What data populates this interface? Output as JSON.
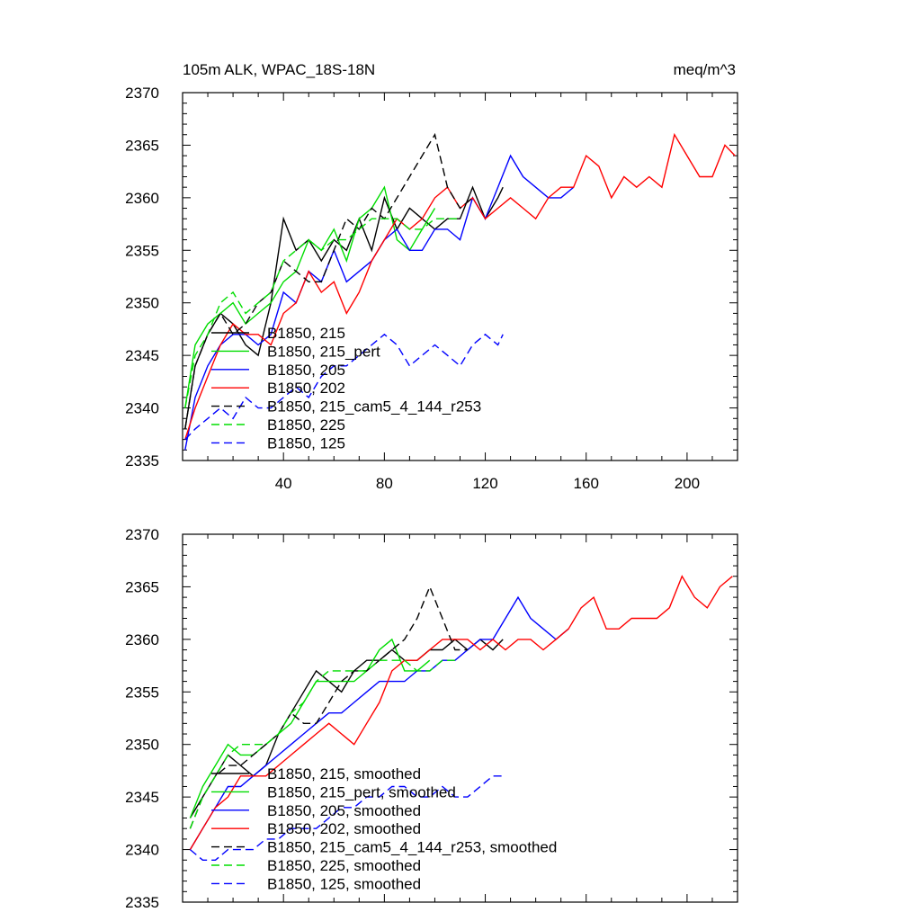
{
  "chart_data": [
    {
      "type": "line",
      "title": "105m ALK, WPAC_18S-18N",
      "units": "meq/m^3",
      "xlabel": "",
      "ylabel": "",
      "xlim": [
        0,
        220
      ],
      "ylim": [
        2335,
        2370
      ],
      "xticks": [
        40,
        80,
        120,
        160,
        200
      ],
      "yticks": [
        2335,
        2340,
        2345,
        2350,
        2355,
        2360,
        2365,
        2370
      ],
      "legend_position": "lower-left",
      "series": [
        {
          "name": "B1850, 215",
          "color": "#000000",
          "dash": "solid",
          "x": [
            1,
            5,
            10,
            15,
            20,
            25,
            30,
            35,
            40,
            45,
            50,
            55,
            60,
            65,
            70,
            75,
            80,
            85,
            90,
            95,
            100,
            105,
            110,
            115,
            120,
            125,
            127
          ],
          "y": [
            2338,
            2344,
            2347,
            2349,
            2348,
            2346,
            2345,
            2350,
            2358,
            2355,
            2356,
            2354,
            2356,
            2355,
            2358,
            2355,
            2360,
            2357,
            2359,
            2358,
            2357,
            2358,
            2358,
            2361,
            2358,
            2360,
            2361
          ]
        },
        {
          "name": "B1850, 215_pert",
          "color": "#00dd00",
          "dash": "solid",
          "x": [
            1,
            5,
            10,
            15,
            20,
            25,
            30,
            35,
            40,
            45,
            50,
            55,
            60,
            65,
            70,
            75,
            80,
            85,
            90,
            95,
            100
          ],
          "y": [
            2340,
            2346,
            2348,
            2349,
            2350,
            2348,
            2349,
            2350,
            2352,
            2353,
            2356,
            2355,
            2357,
            2354,
            2358,
            2359,
            2361,
            2356,
            2355,
            2357,
            2359
          ]
        },
        {
          "name": "B1850, 205",
          "color": "#0000ff",
          "dash": "solid",
          "x": [
            1,
            5,
            10,
            15,
            20,
            25,
            30,
            35,
            40,
            45,
            50,
            55,
            60,
            65,
            70,
            75,
            80,
            85,
            90,
            95,
            100,
            105,
            110,
            115,
            120,
            125,
            130,
            135,
            140,
            145,
            150,
            155
          ],
          "y": [
            2336,
            2341,
            2344,
            2346,
            2347,
            2347,
            2346,
            2347,
            2351,
            2350,
            2353,
            2352,
            2355,
            2352,
            2353,
            2354,
            2356,
            2357,
            2355,
            2355,
            2357,
            2357,
            2356,
            2360,
            2358,
            2361,
            2364,
            2362,
            2361,
            2360,
            2360,
            2361
          ]
        },
        {
          "name": "B1850, 202",
          "color": "#ff0000",
          "dash": "solid",
          "x": [
            1,
            5,
            10,
            15,
            20,
            25,
            30,
            35,
            40,
            45,
            50,
            55,
            60,
            65,
            70,
            75,
            80,
            85,
            90,
            95,
            100,
            105,
            110,
            115,
            120,
            125,
            130,
            135,
            140,
            145,
            150,
            155,
            160,
            165,
            170,
            175,
            180,
            185,
            190,
            195,
            200,
            205,
            210,
            215,
            219
          ],
          "y": [
            2337,
            2340,
            2343,
            2346,
            2348,
            2347,
            2347,
            2346,
            2349,
            2350,
            2353,
            2351,
            2352,
            2349,
            2351,
            2354,
            2356,
            2358,
            2357,
            2358,
            2360,
            2361,
            2359,
            2360,
            2358,
            2359,
            2360,
            2359,
            2358,
            2360,
            2361,
            2361,
            2364,
            2363,
            2360,
            2362,
            2361,
            2362,
            2361,
            2366,
            2364,
            2362,
            2362,
            2365,
            2364
          ]
        },
        {
          "name": "B1850, 215_cam5_4_144_r253",
          "color": "#000000",
          "dash": "dashed",
          "x": [
            1,
            5,
            10,
            15,
            20,
            25,
            30,
            35,
            40,
            45,
            50,
            55,
            60,
            65,
            70,
            75,
            80,
            85,
            90,
            95,
            100,
            105,
            110,
            115
          ],
          "y": [
            2338,
            2344,
            2347,
            2349,
            2347,
            2348,
            2350,
            2351,
            2354,
            2353,
            2352,
            2352,
            2355,
            2358,
            2357,
            2359,
            2358,
            2360,
            2362,
            2364,
            2366,
            2361,
            2359,
            2360
          ]
        },
        {
          "name": "B1850, 225",
          "color": "#00dd00",
          "dash": "dashed",
          "x": [
            1,
            5,
            10,
            15,
            20,
            25,
            30,
            35,
            40,
            45,
            50,
            55,
            60,
            65,
            70,
            75,
            80,
            85,
            90,
            95,
            100,
            105,
            110
          ],
          "y": [
            2340,
            2345,
            2347,
            2350,
            2351,
            2349,
            2350,
            2351,
            2354,
            2355,
            2356,
            2355,
            2356,
            2356,
            2357,
            2358,
            2358,
            2358,
            2357,
            2357,
            2358,
            2358,
            2358
          ]
        },
        {
          "name": "B1850, 125",
          "color": "#0000ff",
          "dash": "dashed",
          "x": [
            1,
            5,
            10,
            15,
            20,
            25,
            30,
            35,
            40,
            45,
            50,
            55,
            60,
            65,
            70,
            75,
            80,
            85,
            90,
            95,
            100,
            105,
            110,
            115,
            120,
            125,
            127
          ],
          "y": [
            2337,
            2338,
            2339,
            2340,
            2339,
            2341,
            2340,
            2340,
            2341,
            2342,
            2341,
            2343,
            2344,
            2344,
            2345,
            2346,
            2347,
            2346,
            2344,
            2345,
            2346,
            2345,
            2344,
            2346,
            2347,
            2346,
            2347
          ]
        }
      ]
    },
    {
      "type": "line",
      "title": "",
      "xlabel": "",
      "ylabel": "",
      "xlim": [
        0,
        220
      ],
      "ylim": [
        2335,
        2370
      ],
      "yticks": [
        2335,
        2340,
        2345,
        2350,
        2355,
        2360,
        2365,
        2370
      ],
      "legend_position": "lower-left",
      "series": [
        {
          "name": "B1850, 215, smoothed",
          "color": "#000000",
          "dash": "solid",
          "x": [
            3,
            8,
            13,
            18,
            23,
            28,
            33,
            38,
            43,
            48,
            53,
            58,
            63,
            68,
            73,
            78,
            83,
            88,
            93,
            98,
            103,
            108,
            113,
            118,
            123,
            127
          ],
          "y": [
            2343,
            2345,
            2347,
            2349,
            2348,
            2347,
            2348,
            2351,
            2353,
            2355,
            2357,
            2356,
            2355,
            2357,
            2358,
            2358,
            2359,
            2358,
            2358,
            2359,
            2359,
            2360,
            2359,
            2360,
            2359,
            2360
          ]
        },
        {
          "name": "B1850, 215_pert, smoothed",
          "color": "#00dd00",
          "dash": "solid",
          "x": [
            3,
            8,
            13,
            18,
            23,
            28,
            33,
            38,
            43,
            48,
            53,
            58,
            63,
            68,
            73,
            78,
            83,
            88,
            93,
            98
          ],
          "y": [
            2343,
            2346,
            2348,
            2350,
            2349,
            2349,
            2350,
            2351,
            2352,
            2354,
            2356,
            2356,
            2356,
            2356,
            2357,
            2359,
            2360,
            2357,
            2357,
            2358
          ]
        },
        {
          "name": "B1850, 205, smoothed",
          "color": "#0000ff",
          "dash": "solid",
          "x": [
            3,
            8,
            13,
            18,
            23,
            28,
            33,
            38,
            43,
            48,
            53,
            58,
            63,
            68,
            73,
            78,
            83,
            88,
            93,
            98,
            103,
            108,
            113,
            118,
            123,
            128,
            133,
            138,
            143,
            148,
            153
          ],
          "y": [
            2340,
            2342,
            2344,
            2346,
            2346,
            2347,
            2348,
            2349,
            2350,
            2351,
            2352,
            2353,
            2353,
            2354,
            2355,
            2356,
            2356,
            2356,
            2357,
            2357,
            2358,
            2358,
            2359,
            2360,
            2360,
            2362,
            2364,
            2362,
            2361,
            2360,
            2361
          ]
        },
        {
          "name": "B1850, 202, smoothed",
          "color": "#ff0000",
          "dash": "solid",
          "x": [
            3,
            8,
            13,
            18,
            23,
            28,
            33,
            38,
            43,
            48,
            53,
            58,
            63,
            68,
            73,
            78,
            83,
            88,
            93,
            98,
            103,
            108,
            113,
            118,
            123,
            128,
            133,
            138,
            143,
            148,
            153,
            158,
            163,
            168,
            173,
            178,
            183,
            188,
            193,
            198,
            203,
            208,
            213,
            218
          ],
          "y": [
            2340,
            2342,
            2344,
            2345,
            2347,
            2347,
            2347,
            2348,
            2349,
            2350,
            2351,
            2352,
            2351,
            2350,
            2352,
            2354,
            2357,
            2358,
            2358,
            2359,
            2360,
            2360,
            2360,
            2359,
            2360,
            2359,
            2360,
            2360,
            2359,
            2360,
            2361,
            2363,
            2364,
            2361,
            2361,
            2362,
            2362,
            2362,
            2363,
            2366,
            2364,
            2363,
            2365,
            2366
          ]
        },
        {
          "name": "B1850, 215_cam5_4_144_r253, smoothed",
          "color": "#000000",
          "dash": "dashed",
          "x": [
            3,
            8,
            13,
            18,
            23,
            28,
            33,
            38,
            43,
            48,
            53,
            58,
            63,
            68,
            73,
            78,
            83,
            88,
            93,
            98,
            103,
            108,
            113
          ],
          "y": [
            2342,
            2345,
            2347,
            2348,
            2348,
            2349,
            2350,
            2351,
            2353,
            2352,
            2352,
            2354,
            2356,
            2357,
            2357,
            2358,
            2359,
            2360,
            2362,
            2365,
            2362,
            2359,
            2359
          ]
        },
        {
          "name": "B1850, 225, smoothed",
          "color": "#00dd00",
          "dash": "dashed",
          "x": [
            3,
            8,
            13,
            18,
            23,
            28,
            33,
            38,
            43,
            48,
            53,
            58,
            63,
            68,
            73,
            78,
            83,
            88,
            93,
            98,
            103,
            108
          ],
          "y": [
            2342,
            2345,
            2347,
            2349,
            2350,
            2350,
            2350,
            2351,
            2353,
            2354,
            2356,
            2357,
            2357,
            2357,
            2357,
            2358,
            2358,
            2358,
            2357,
            2357,
            2358,
            2358
          ]
        },
        {
          "name": "B1850, 125, smoothed",
          "color": "#0000ff",
          "dash": "dashed",
          "x": [
            3,
            8,
            13,
            18,
            23,
            28,
            33,
            38,
            43,
            48,
            53,
            58,
            63,
            68,
            73,
            78,
            83,
            88,
            93,
            98,
            103,
            108,
            113,
            118,
            123,
            127
          ],
          "y": [
            2340,
            2339,
            2339,
            2340,
            2340,
            2340,
            2341,
            2341,
            2342,
            2342,
            2342,
            2343,
            2344,
            2344,
            2345,
            2345,
            2346,
            2346,
            2345,
            2345,
            2346,
            2345,
            2345,
            2346,
            2347,
            2347
          ]
        }
      ]
    }
  ]
}
